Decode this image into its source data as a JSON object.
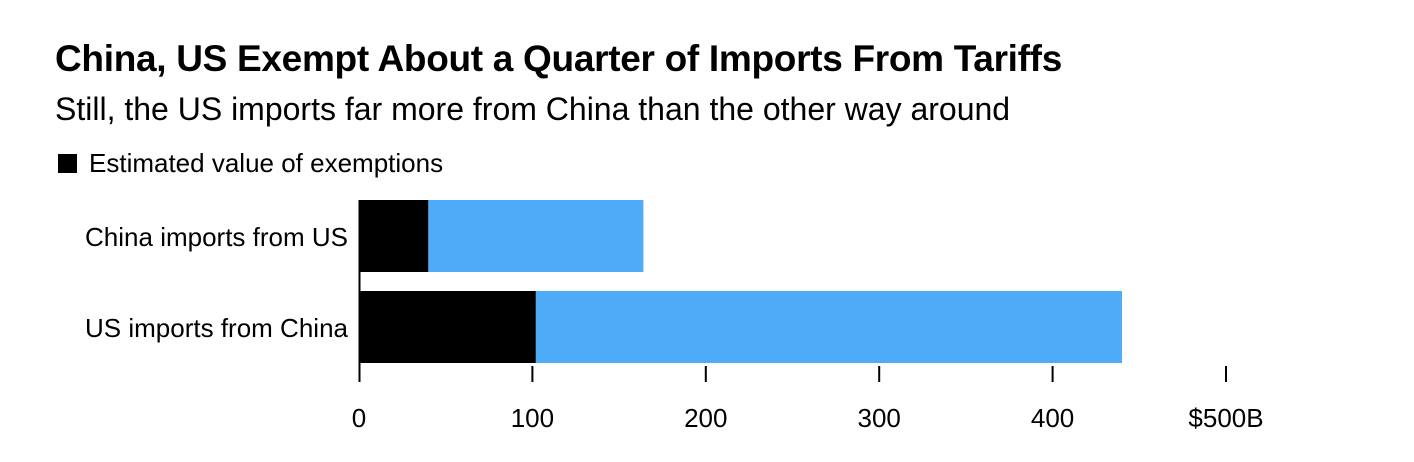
{
  "chart_data": {
    "type": "bar",
    "orientation": "horizontal",
    "stacked": true,
    "title": "China, US Exempt About a Quarter of Imports From Tariffs",
    "subtitle": "Still, the US imports far more from China than the other way around",
    "categories": [
      "China imports from US",
      "US imports from China"
    ],
    "series": [
      {
        "name": "Estimated value of exemptions",
        "color": "#000000",
        "values": [
          40,
          102
        ]
      },
      {
        "color": "#4eabf7",
        "values": [
          124,
          338
        ]
      }
    ],
    "totals": [
      164,
      440
    ],
    "xlim": [
      0,
      500
    ],
    "xticks": [
      0,
      100,
      200,
      300,
      400,
      500
    ],
    "xtick_labels": [
      "0",
      "100",
      "200",
      "300",
      "400",
      "$500B"
    ],
    "legend": {
      "position": "top-left",
      "entries": [
        "Estimated value of exemptions"
      ]
    },
    "grid": false
  }
}
